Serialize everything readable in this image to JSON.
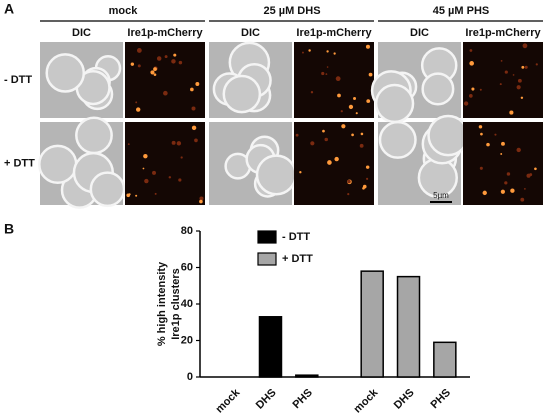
{
  "panel_a": {
    "label": "A",
    "columns": [
      {
        "title": "mock",
        "channels": [
          "DIC",
          "Ire1p-mCherry"
        ]
      },
      {
        "title": "25 µM DHS",
        "channels": [
          "DIC",
          "Ire1p-mCherry"
        ]
      },
      {
        "title": "45 µM PHS",
        "channels": [
          "DIC",
          "Ire1p-mCherry"
        ]
      }
    ],
    "rows": [
      "- DTT",
      "+ DTT"
    ],
    "scale_bar": "5µm"
  },
  "panel_b": {
    "label": "B"
  },
  "chart_data": {
    "type": "bar",
    "y_label": [
      "% high intensity",
      "Ire1p clusters"
    ],
    "categories": [
      "mock",
      "DHS",
      "PHS",
      "mock",
      "DHS",
      "PHS"
    ],
    "series": [
      {
        "name": "- DTT",
        "color": "#000000",
        "values": [
          0,
          33,
          1,
          null,
          null,
          null
        ]
      },
      {
        "name": "+ DTT",
        "color": "#a6a6a6",
        "values": [
          null,
          null,
          null,
          58,
          55,
          19
        ]
      }
    ],
    "ylim": [
      0,
      80
    ],
    "yticks": [
      0,
      20,
      40,
      60,
      80
    ],
    "legend": "upper left"
  }
}
